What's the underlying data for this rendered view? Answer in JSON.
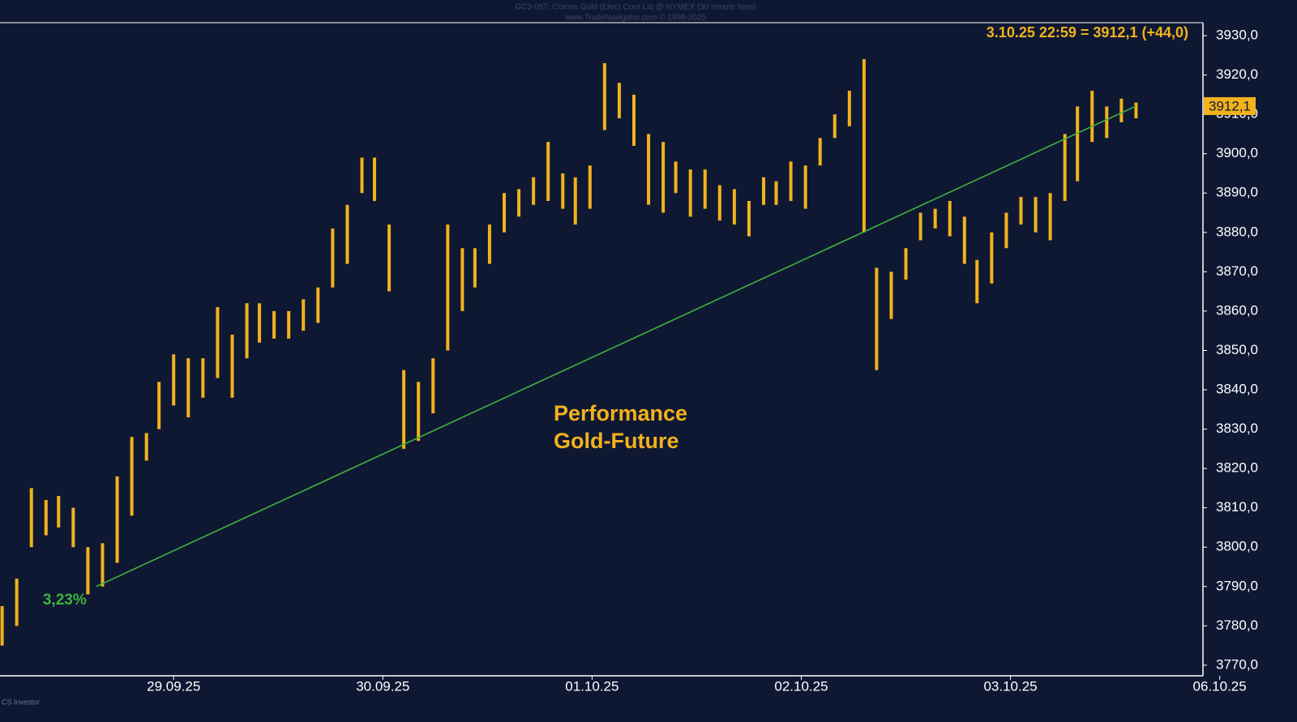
{
  "chart_data": {
    "type": "range-bar",
    "title": "GC3-057:  Comex Gold (Elec) Cont Liq @ NYMEX  (30 minute bars)",
    "subtitle": "www.TradeNavigator.com © 1999-2025",
    "last_quote": "3.10.25 22:59 = 3912,1 (+44,0)",
    "last_price": {
      "value": 3912.1,
      "label": "3912,1"
    },
    "footer": "CS Investor",
    "color": "#f2b21b",
    "x": [
      -0.82,
      -0.75,
      -0.68,
      -0.61,
      -0.55,
      -0.48,
      -0.41,
      -0.34,
      -0.27,
      -0.2,
      -0.13,
      -0.07,
      0.0,
      0.07,
      0.14,
      0.21,
      0.28,
      0.35,
      0.41,
      0.48,
      0.55,
      0.62,
      0.69,
      0.76,
      0.83,
      0.9,
      0.96,
      1.03,
      1.1,
      1.17,
      1.24,
      1.31,
      1.38,
      1.44,
      1.51,
      1.58,
      1.65,
      1.72,
      1.79,
      1.86,
      1.92,
      1.99,
      2.06,
      2.13,
      2.2,
      2.27,
      2.34,
      2.4,
      2.47,
      2.54,
      2.61,
      2.68,
      2.75,
      2.82,
      2.88,
      2.95,
      3.02,
      3.09,
      3.16,
      3.23,
      3.3,
      3.36,
      3.43,
      3.5,
      3.57,
      3.64,
      3.71,
      3.78,
      3.84,
      3.91,
      3.98,
      4.05,
      4.12,
      4.19,
      4.26,
      4.32,
      4.39,
      4.46,
      4.53,
      4.6
    ],
    "high": [
      3785,
      3792,
      3815,
      3812,
      3813,
      3810,
      3800,
      3801,
      3818,
      3828,
      3829,
      3842,
      3849,
      3848,
      3848,
      3861,
      3854,
      3862,
      3862,
      3860,
      3860,
      3863,
      3866,
      3881,
      3887,
      3899,
      3899,
      3882,
      3845,
      3842,
      3848,
      3882,
      3876,
      3876,
      3882,
      3890,
      3891,
      3894,
      3903,
      3895,
      3894,
      3897,
      3923,
      3918,
      3915,
      3905,
      3903,
      3898,
      3896,
      3896,
      3892,
      3891,
      3888,
      3894,
      3893,
      3898,
      3897,
      3904,
      3910,
      3916,
      3924,
      3871,
      3870,
      3876,
      3885,
      3886,
      3888,
      3884,
      3873,
      3880,
      3885,
      3889,
      3889,
      3890,
      3905,
      3912,
      3916,
      3912,
      3914,
      3913
    ],
    "low": [
      3775,
      3780,
      3800,
      3803,
      3805,
      3800,
      3788,
      3790,
      3796,
      3808,
      3822,
      3830,
      3836,
      3833,
      3838,
      3843,
      3838,
      3848,
      3852,
      3853,
      3853,
      3855,
      3857,
      3866,
      3872,
      3890,
      3888,
      3865,
      3825,
      3827,
      3834,
      3850,
      3860,
      3866,
      3872,
      3880,
      3884,
      3887,
      3888,
      3886,
      3882,
      3886,
      3906,
      3909,
      3902,
      3887,
      3885,
      3890,
      3884,
      3886,
      3883,
      3882,
      3879,
      3887,
      3887,
      3888,
      3886,
      3897,
      3904,
      3907,
      3880,
      3845,
      3858,
      3868,
      3878,
      3881,
      3879,
      3872,
      3862,
      3867,
      3876,
      3882,
      3880,
      3878,
      3888,
      3893,
      3903,
      3904,
      3908,
      3909
    ],
    "trend_line": {
      "color": "#3db33d",
      "x": [
        -0.37,
        4.6
      ],
      "y": [
        3790,
        3912.1
      ],
      "label": "3,23%"
    },
    "annotation": [
      "Performance",
      "Gold-Future"
    ],
    "xlim": [
      -0.83,
      4.92
    ],
    "xticks": [
      {
        "value": 0,
        "label": "29.09.25"
      },
      {
        "value": 1,
        "label": "30.09.25"
      },
      {
        "value": 2,
        "label": "01.10.25"
      },
      {
        "value": 3,
        "label": "02.10.25"
      },
      {
        "value": 4,
        "label": "03.10.25"
      },
      {
        "value": 5,
        "label": "06.10.25"
      }
    ],
    "ylim": [
      3767.3,
      3933.3
    ],
    "yticks": [
      {
        "value": 3770,
        "label": "3770,0"
      },
      {
        "value": 3780,
        "label": "3780,0"
      },
      {
        "value": 3790,
        "label": "3790,0"
      },
      {
        "value": 3800,
        "label": "3800,0"
      },
      {
        "value": 3810,
        "label": "3810,0"
      },
      {
        "value": 3820,
        "label": "3820,0"
      },
      {
        "value": 3830,
        "label": "3830,0"
      },
      {
        "value": 3840,
        "label": "3840,0"
      },
      {
        "value": 3850,
        "label": "3850,0"
      },
      {
        "value": 3860,
        "label": "3860,0"
      },
      {
        "value": 3870,
        "label": "3870,0"
      },
      {
        "value": 3880,
        "label": "3880,0"
      },
      {
        "value": 3890,
        "label": "3890,0"
      },
      {
        "value": 3900,
        "label": "3900,0"
      },
      {
        "value": 3910,
        "label": "3910,0"
      },
      {
        "value": 3920,
        "label": "3920,0"
      },
      {
        "value": 3930,
        "label": "3930,0"
      }
    ]
  }
}
